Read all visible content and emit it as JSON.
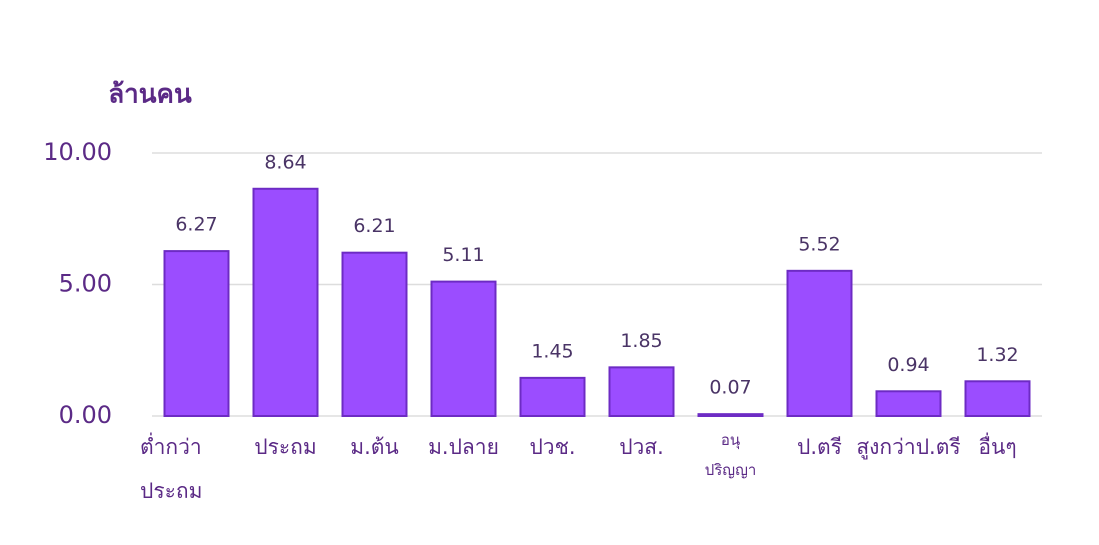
{
  "chart_data": {
    "type": "bar",
    "y_label": "ล้านคน",
    "categories": [
      "ต่ำกว่า\nประถม",
      "ประถม",
      "ม.ต้น",
      "ม.ปลาย",
      "ปวช.",
      "ปวส.",
      "อนุ\nปริญญา",
      "ป.ตรี",
      "สูงกว่าป.ตรี",
      "อื่นๆ"
    ],
    "values": [
      6.27,
      8.64,
      6.21,
      5.11,
      1.45,
      1.85,
      0.07,
      5.52,
      0.94,
      1.32
    ],
    "color": "#9b4dff",
    "ylim": [
      0,
      10
    ],
    "yticks": [
      {
        "value": 0,
        "label": "0.00"
      },
      {
        "value": 5,
        "label": "5.00"
      },
      {
        "value": 10,
        "label": "10.00"
      }
    ],
    "grid": true
  }
}
